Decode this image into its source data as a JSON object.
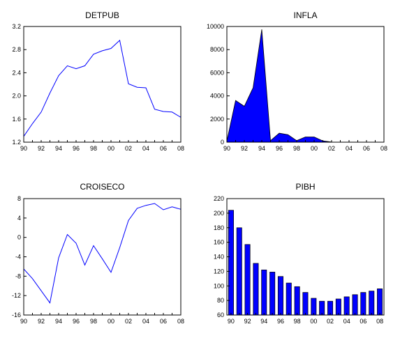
{
  "chart_data": [
    {
      "type": "line",
      "title": "DETPUB",
      "x": [
        1990,
        1991,
        1992,
        1993,
        1994,
        1995,
        1996,
        1997,
        1998,
        1999,
        2000,
        2001,
        2002,
        2003,
        2004,
        2005,
        2006,
        2007,
        2008
      ],
      "values": [
        1.3,
        1.52,
        1.72,
        2.05,
        2.35,
        2.52,
        2.47,
        2.52,
        2.72,
        2.78,
        2.82,
        2.96,
        2.21,
        2.15,
        2.14,
        1.77,
        1.73,
        1.72,
        1.63
      ],
      "ylim": [
        1.2,
        3.2
      ],
      "yticks": [
        1.2,
        1.6,
        2.0,
        2.4,
        2.8,
        3.2
      ],
      "ytick_labels": [
        "1.2",
        "1.6",
        "2.0",
        "2.4",
        "2.8",
        "3.2"
      ],
      "xticks": [
        1990,
        1992,
        1994,
        1996,
        1998,
        2000,
        2002,
        2004,
        2006,
        2008
      ],
      "xtick_labels": [
        "90",
        "92",
        "94",
        "96",
        "98",
        "00",
        "02",
        "04",
        "06",
        "08"
      ],
      "color": "#0000ff"
    },
    {
      "type": "area",
      "title": "INFLA",
      "x": [
        1990,
        1991,
        1992,
        1993,
        1994,
        1995,
        1996,
        1997,
        1998,
        1999,
        2000,
        2001,
        2002,
        2003,
        2004,
        2005,
        2006,
        2007,
        2008
      ],
      "values": [
        100,
        3600,
        3100,
        4700,
        9750,
        130,
        780,
        650,
        130,
        450,
        450,
        110,
        10,
        5,
        5,
        5,
        5,
        5,
        5
      ],
      "ylim": [
        0,
        10000
      ],
      "yticks": [
        0,
        2000,
        4000,
        6000,
        8000,
        10000
      ],
      "ytick_labels": [
        "0",
        "2000",
        "4000",
        "6000",
        "8000",
        "10000"
      ],
      "xticks": [
        1990,
        1992,
        1994,
        1996,
        1998,
        2000,
        2002,
        2004,
        2006,
        2008
      ],
      "xtick_labels": [
        "90",
        "92",
        "94",
        "96",
        "98",
        "00",
        "02",
        "04",
        "06",
        "08"
      ],
      "color": "#0000ff"
    },
    {
      "type": "line",
      "title": "CROISECO",
      "x": [
        1990,
        1991,
        1992,
        1993,
        1994,
        1995,
        1996,
        1997,
        1998,
        1999,
        2000,
        2001,
        2002,
        2003,
        2004,
        2005,
        2006,
        2007,
        2008
      ],
      "values": [
        -6.5,
        -8.5,
        -11.0,
        -13.5,
        -4.2,
        0.6,
        -1.2,
        -5.7,
        -1.7,
        -4.4,
        -7.2,
        -2.1,
        3.5,
        6.0,
        6.6,
        7.0,
        5.7,
        6.3,
        5.8
      ],
      "ylim": [
        -16,
        8
      ],
      "yticks": [
        -16,
        -12,
        -8,
        -4,
        0,
        4,
        8
      ],
      "ytick_labels": [
        "-16",
        "-12",
        "-8",
        "-4",
        "0",
        "4",
        "8"
      ],
      "xticks": [
        1990,
        1992,
        1994,
        1996,
        1998,
        2000,
        2002,
        2004,
        2006,
        2008
      ],
      "xtick_labels": [
        "90",
        "92",
        "94",
        "96",
        "98",
        "00",
        "02",
        "04",
        "06",
        "08"
      ],
      "color": "#0000ff"
    },
    {
      "type": "bar",
      "title": "PIBH",
      "x": [
        1990,
        1991,
        1992,
        1993,
        1994,
        1995,
        1996,
        1997,
        1998,
        1999,
        2000,
        2001,
        2002,
        2003,
        2004,
        2005,
        2006,
        2007,
        2008
      ],
      "values": [
        204,
        180,
        157,
        131,
        122,
        119,
        113,
        104,
        99,
        91,
        83,
        79,
        79,
        82,
        85,
        88,
        91,
        93,
        96
      ],
      "ylim": [
        60,
        220
      ],
      "yticks": [
        60,
        80,
        100,
        120,
        140,
        160,
        180,
        200,
        220
      ],
      "ytick_labels": [
        "60",
        "80",
        "100",
        "120",
        "140",
        "160",
        "180",
        "200",
        "220"
      ],
      "xticks": [
        1990,
        1992,
        1994,
        1996,
        1998,
        2000,
        2002,
        2004,
        2006,
        2008
      ],
      "xtick_labels": [
        "90",
        "92",
        "94",
        "96",
        "98",
        "00",
        "02",
        "04",
        "06",
        "08"
      ],
      "color": "#0000ff"
    }
  ]
}
